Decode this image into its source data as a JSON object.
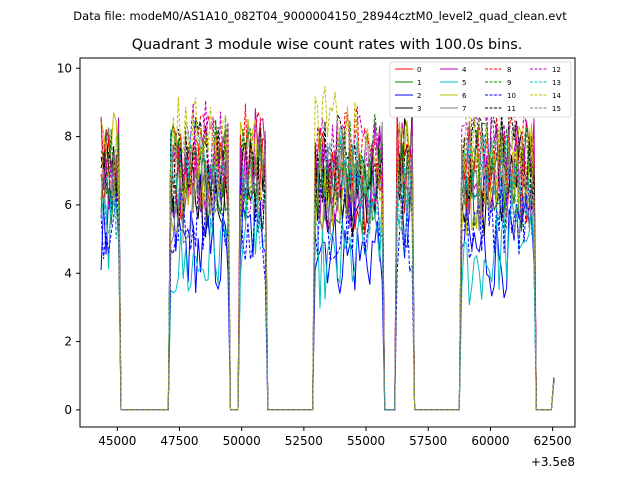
{
  "chart_data": {
    "type": "line",
    "suptitle": "Data file: modeM0/AS1A10_082T04_9000004150_28944cztM0_level2_quad_clean.evt",
    "title": "Quadrant 3 module wise count rates with 100.0s bins.",
    "xlabel": "",
    "ylabel": "",
    "x_offset_label": "+3.5e8",
    "xlim": [
      43500,
      63400
    ],
    "ylim": [
      -0.5,
      10.3
    ],
    "xticks": [
      45000,
      47500,
      50000,
      52500,
      55000,
      57500,
      60000,
      62500
    ],
    "xtick_labels": [
      "45000",
      "47500",
      "50000",
      "52500",
      "55000",
      "57500",
      "60000",
      "62500"
    ],
    "yticks": [
      0,
      2,
      4,
      6,
      8,
      10
    ],
    "ytick_labels": [
      "0",
      "2",
      "4",
      "6",
      "8",
      "10"
    ],
    "legend": {
      "placement": "top-right",
      "columns": 4
    },
    "segments": [
      {
        "start": 44350,
        "end": 45050
      },
      {
        "start": 47150,
        "end": 49450
      },
      {
        "start": 49950,
        "end": 50950
      },
      {
        "start": 52950,
        "end": 55650
      },
      {
        "start": 56250,
        "end": 56850
      },
      {
        "start": 58850,
        "end": 61750
      },
      {
        "start": 62550,
        "end": 62600
      }
    ],
    "series": [
      {
        "name": "0",
        "color": "#ff0000",
        "dash": "solid",
        "base": 7.0
      },
      {
        "name": "1",
        "color": "#008000",
        "dash": "solid",
        "base": 6.8
      },
      {
        "name": "2",
        "color": "#0000ff",
        "dash": "solid",
        "marker": "+",
        "base": 5.1
      },
      {
        "name": "3",
        "color": "#000000",
        "dash": "solid",
        "base": 6.9
      },
      {
        "name": "4",
        "color": "#bf00bf",
        "dash": "solid",
        "base": 7.1
      },
      {
        "name": "5",
        "color": "#00bfbf",
        "dash": "solid",
        "base": 4.8
      },
      {
        "name": "6",
        "color": "#bfbf00",
        "dash": "solid",
        "base": 6.9
      },
      {
        "name": "7",
        "color": "#808080",
        "dash": "solid",
        "base": 6.7
      },
      {
        "name": "8",
        "color": "#ff0000",
        "dash": "dashed",
        "base": 7.3
      },
      {
        "name": "9",
        "color": "#008000",
        "dash": "dashed",
        "base": 6.9
      },
      {
        "name": "10",
        "color": "#0000ff",
        "dash": "dashed",
        "base": 5.3
      },
      {
        "name": "11",
        "color": "#000000",
        "dash": "dashed",
        "base": 7.0
      },
      {
        "name": "12",
        "color": "#bf00bf",
        "dash": "dashed",
        "base": 7.2
      },
      {
        "name": "13",
        "color": "#00bfbf",
        "dash": "dashed",
        "base": 6.6
      },
      {
        "name": "14",
        "color": "#bfbf00",
        "dash": "dashed",
        "base": 7.6
      },
      {
        "name": "15",
        "color": "#808080",
        "dash": "dashed",
        "base": 6.8
      }
    ]
  }
}
